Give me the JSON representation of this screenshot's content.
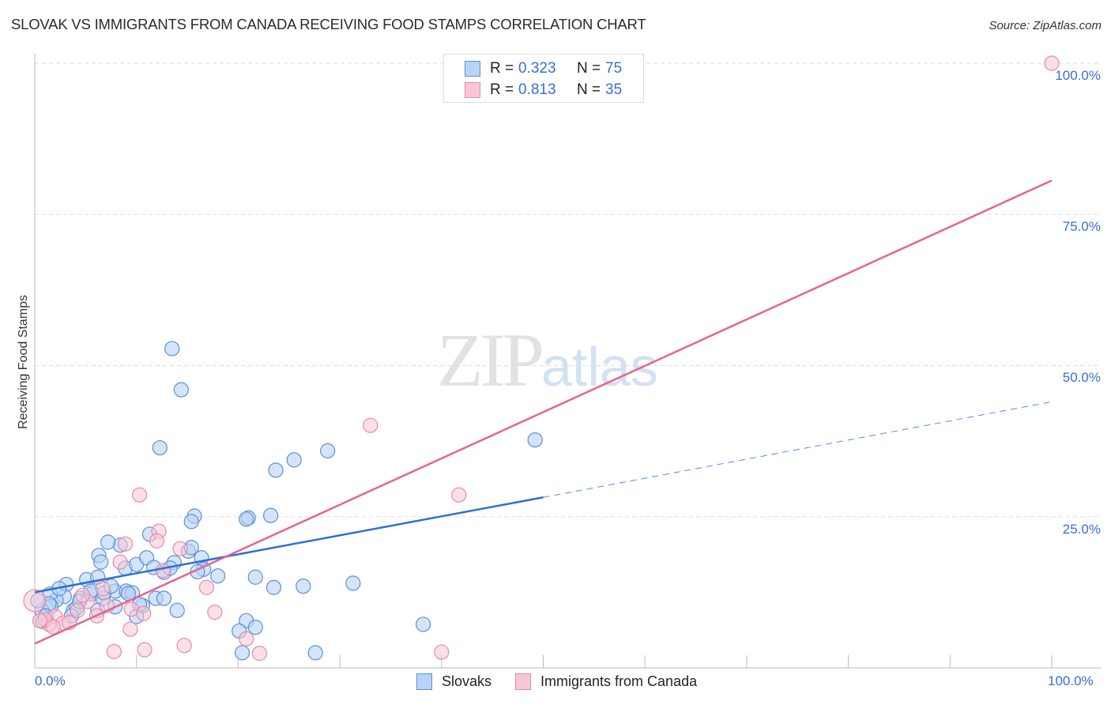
{
  "header": {
    "title": "SLOVAK VS IMMIGRANTS FROM CANADA RECEIVING FOOD STAMPS CORRELATION CHART",
    "source": "Source: ZipAtlas.com"
  },
  "legend_top": {
    "rows": [
      {
        "r_label": "R =",
        "r_value": "0.323",
        "n_label": "N =",
        "n_value": "75"
      },
      {
        "r_label": "R =",
        "r_value": "0.813",
        "n_label": "N =",
        "n_value": "35"
      }
    ]
  },
  "legend_bottom": {
    "items": [
      {
        "label": "Slovaks"
      },
      {
        "label": "Immigrants from Canada"
      }
    ]
  },
  "axes": {
    "ylabel": "Receiving Food Stamps",
    "y_ticks": [
      "100.0%",
      "75.0%",
      "50.0%",
      "25.0%"
    ],
    "x_ticks": [
      "0.0%",
      "100.0%"
    ]
  },
  "watermark": {
    "zip": "ZIP",
    "atlas": "atlas"
  },
  "colors": {
    "slovaks_fill": "#b7d3f5",
    "slovaks_stroke": "#5b8fdb",
    "slovaks_line": "#2b6fd6",
    "canada_fill": "#f9c6d6",
    "canada_stroke": "#e68aa6",
    "canada_line": "#e3658f",
    "accent_text": "#3a6fd0"
  },
  "chart_data": {
    "type": "scatter",
    "title": "SLOVAK VS IMMIGRANTS FROM CANADA RECEIVING FOOD STAMPS CORRELATION CHART",
    "xlabel": "",
    "ylabel": "Receiving Food Stamps",
    "xlim": [
      0,
      100
    ],
    "ylim": [
      0,
      100
    ],
    "x_tick_labels": [
      "0.0%",
      "100.0%"
    ],
    "y_tick_labels": [
      "25.0%",
      "50.0%",
      "75.0%",
      "100.0%"
    ],
    "grid": true,
    "legend_position": "bottom",
    "series": [
      {
        "name": "Slovaks",
        "R": 0.323,
        "N": 75,
        "trendline": {
          "x": [
            0,
            50
          ],
          "y": [
            12.5,
            28.2
          ],
          "dashed_extension": {
            "x": [
              50,
              100
            ],
            "y": [
              28.2,
              44
            ]
          }
        },
        "points": [
          [
            13.5,
            52.8
          ],
          [
            14.4,
            46.0
          ],
          [
            12.3,
            36.4
          ],
          [
            49.2,
            37.7
          ],
          [
            28.8,
            35.9
          ],
          [
            25.5,
            34.4
          ],
          [
            23.7,
            32.7
          ],
          [
            23.2,
            25.2
          ],
          [
            21.0,
            24.8
          ],
          [
            20.8,
            24.6
          ],
          [
            15.7,
            25.1
          ],
          [
            15.4,
            24.2
          ],
          [
            11.3,
            22.1
          ],
          [
            8.4,
            20.3
          ],
          [
            6.3,
            18.6
          ],
          [
            7.2,
            20.8
          ],
          [
            6.5,
            17.5
          ],
          [
            5.1,
            14.6
          ],
          [
            6.2,
            15.0
          ],
          [
            8.9,
            16.5
          ],
          [
            10.0,
            17.1
          ],
          [
            11.0,
            18.2
          ],
          [
            11.7,
            16.6
          ],
          [
            13.7,
            17.4
          ],
          [
            15.1,
            19.3
          ],
          [
            15.4,
            19.9
          ],
          [
            16.4,
            18.2
          ],
          [
            12.7,
            15.8
          ],
          [
            13.3,
            16.5
          ],
          [
            16.6,
            16.3
          ],
          [
            18.0,
            15.2
          ],
          [
            16.0,
            15.9
          ],
          [
            3.1,
            13.8
          ],
          [
            2.9,
            11.8
          ],
          [
            2.1,
            11.2
          ],
          [
            1.5,
            12.2
          ],
          [
            1.6,
            10.2
          ],
          [
            0.7,
            9.5
          ],
          [
            0.8,
            7.7
          ],
          [
            3.8,
            9.5
          ],
          [
            4.1,
            9.9
          ],
          [
            4.5,
            11.5
          ],
          [
            5.6,
            12.2
          ],
          [
            6.7,
            11.5
          ],
          [
            7.9,
            12.7
          ],
          [
            9.0,
            12.7
          ],
          [
            9.6,
            12.4
          ],
          [
            7.9,
            10.1
          ],
          [
            9.2,
            12.3
          ],
          [
            10.6,
            10.3
          ],
          [
            11.9,
            11.5
          ],
          [
            12.7,
            11.5
          ],
          [
            14.0,
            9.5
          ],
          [
            6.8,
            12.4
          ],
          [
            10.0,
            8.5
          ],
          [
            3.6,
            8.6
          ],
          [
            21.7,
            15.0
          ],
          [
            23.5,
            13.3
          ],
          [
            26.4,
            13.5
          ],
          [
            31.3,
            14.0
          ],
          [
            20.8,
            7.8
          ],
          [
            20.1,
            6.1
          ],
          [
            21.7,
            6.7
          ],
          [
            38.2,
            7.2
          ],
          [
            20.4,
            2.5
          ],
          [
            27.6,
            2.5
          ],
          [
            6.2,
            9.5
          ],
          [
            10.3,
            10.5
          ],
          [
            1.4,
            10.6
          ],
          [
            0.3,
            11.1
          ],
          [
            5.5,
            12.7
          ],
          [
            2.4,
            13.1
          ],
          [
            7.5,
            13.5
          ],
          [
            4.4,
            11.0
          ],
          [
            1.1,
            8.6
          ]
        ]
      },
      {
        "name": "Immigrants from Canada",
        "R": 0.813,
        "N": 35,
        "trendline": {
          "x": [
            0,
            100
          ],
          "y": [
            4.0,
            80.6
          ]
        },
        "points": [
          [
            100,
            100
          ],
          [
            33.0,
            40.1
          ],
          [
            41.7,
            28.6
          ],
          [
            10.3,
            28.6
          ],
          [
            12.2,
            22.6
          ],
          [
            12.0,
            21.0
          ],
          [
            8.9,
            20.5
          ],
          [
            14.3,
            19.7
          ],
          [
            8.4,
            17.5
          ],
          [
            12.6,
            16.1
          ],
          [
            16.9,
            13.3
          ],
          [
            6.7,
            13.1
          ],
          [
            7.1,
            10.3
          ],
          [
            5.2,
            11.0
          ],
          [
            4.2,
            9.5
          ],
          [
            17.7,
            9.2
          ],
          [
            2.0,
            8.5
          ],
          [
            2.8,
            7.4
          ],
          [
            1.4,
            7.2
          ],
          [
            1.0,
            8.0
          ],
          [
            3.4,
            7.5
          ],
          [
            6.1,
            8.6
          ],
          [
            9.5,
            9.7
          ],
          [
            10.7,
            9.0
          ],
          [
            9.4,
            6.4
          ],
          [
            14.7,
            3.7
          ],
          [
            7.8,
            2.7
          ],
          [
            10.8,
            3.0
          ],
          [
            20.8,
            4.8
          ],
          [
            22.1,
            2.4
          ],
          [
            40.0,
            2.6
          ],
          [
            0.0,
            11.1
          ],
          [
            0.5,
            7.8
          ],
          [
            1.8,
            6.8
          ],
          [
            4.7,
            12.0
          ]
        ]
      }
    ]
  }
}
